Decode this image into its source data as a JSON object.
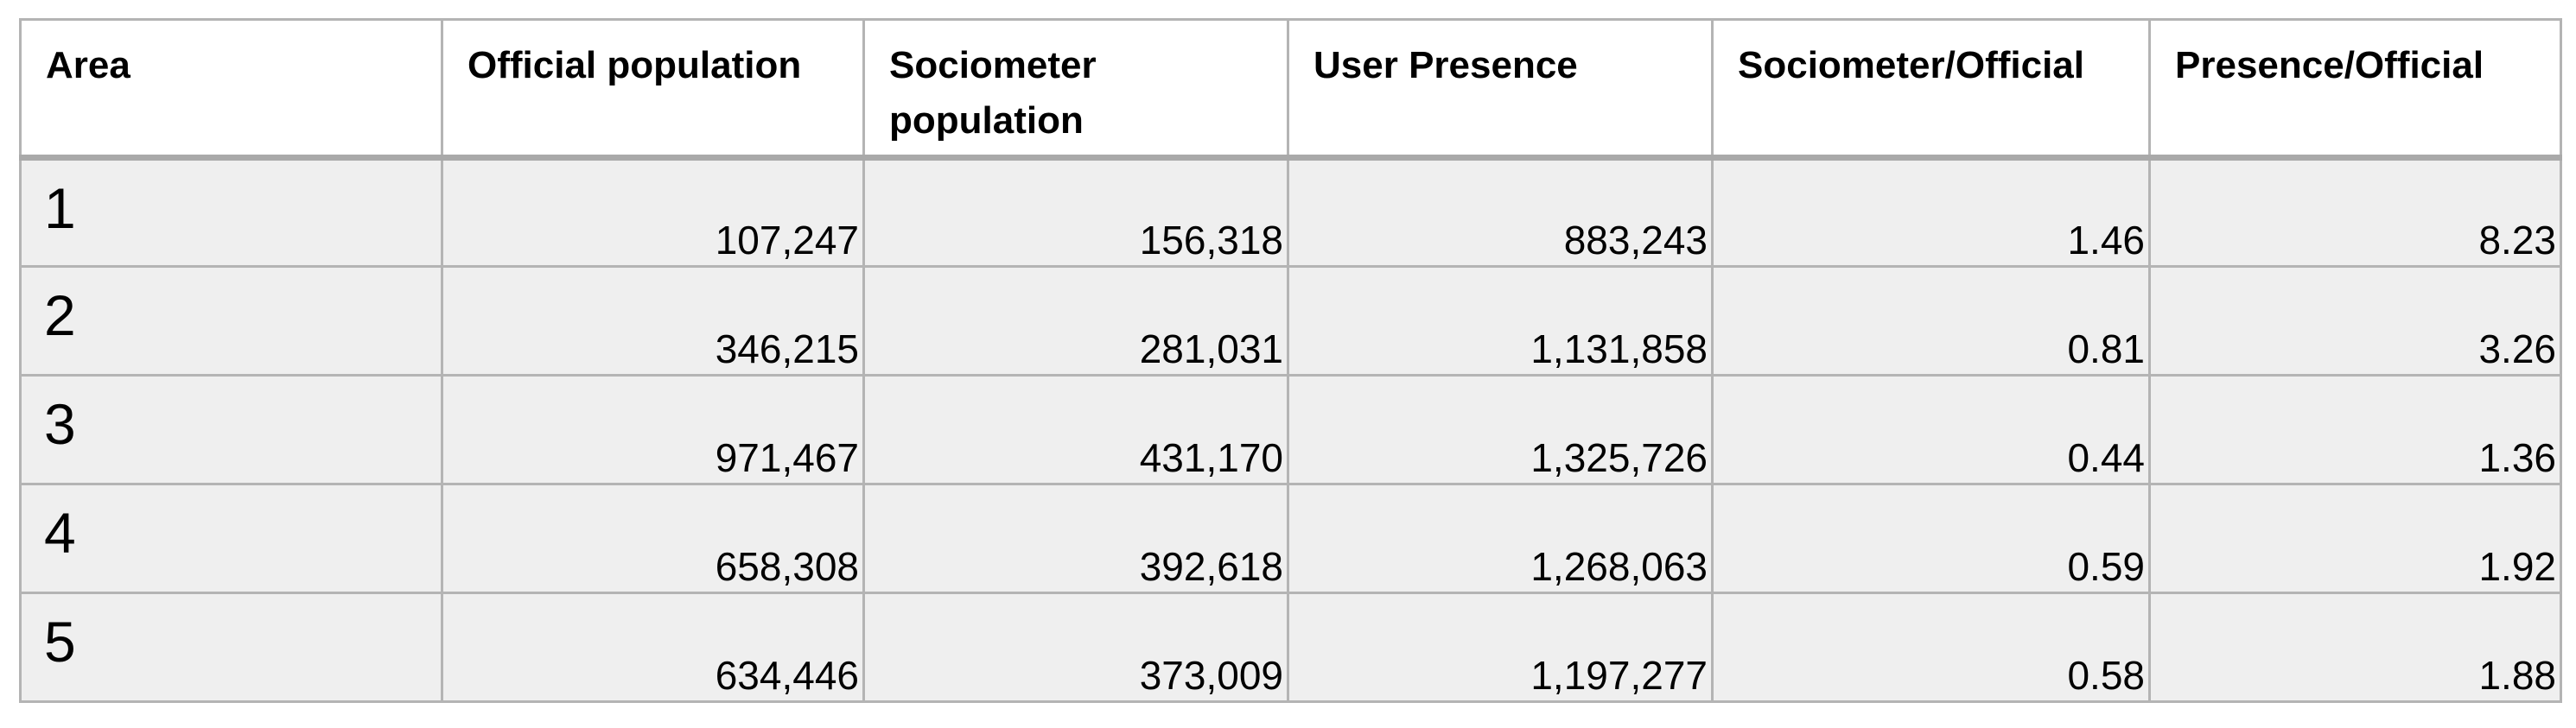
{
  "table": {
    "columns": [
      "Area",
      "Official population",
      "Sociometer population",
      "User Presence",
      "Sociometer/Official",
      "Presence/Official"
    ],
    "rows": [
      [
        "1",
        "107,247",
        "156,318",
        "883,243",
        "1.46",
        "8.23"
      ],
      [
        "2",
        "346,215",
        "281,031",
        "1,131,858",
        "0.81",
        "3.26"
      ],
      [
        "3",
        "971,467",
        "431,170",
        "1,325,726",
        "0.44",
        "1.36"
      ],
      [
        "4",
        "658,308",
        "392,618",
        "1,268,063",
        "0.59",
        "1.92"
      ],
      [
        "5",
        "634,446",
        "373,009",
        "1,197,277",
        "0.58",
        "1.88"
      ]
    ]
  }
}
